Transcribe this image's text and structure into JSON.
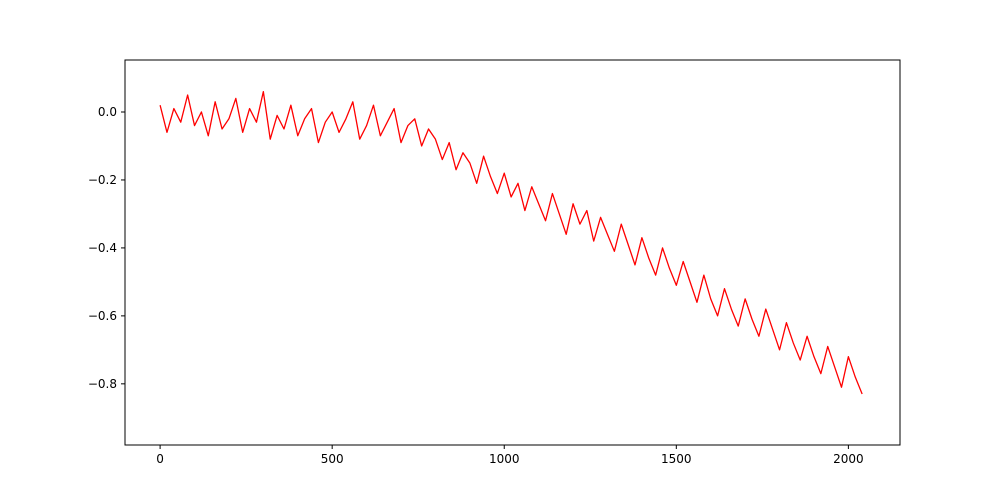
{
  "chart_data": {
    "type": "line",
    "title": "",
    "xlabel": "",
    "ylabel": "",
    "xlim": [
      -102,
      2150
    ],
    "ylim": [
      -0.98,
      0.153
    ],
    "xticks": [
      0,
      500,
      1000,
      1500,
      2000
    ],
    "xtick_labels": [
      "0",
      "500",
      "1000",
      "1500",
      "2000"
    ],
    "yticks": [
      0.0,
      -0.2,
      -0.4,
      -0.6,
      -0.8
    ],
    "ytick_labels": [
      "0.0",
      "−0.2",
      "−0.4",
      "−0.6",
      "−0.8"
    ],
    "grid": false,
    "legend": "none",
    "series": [
      {
        "color": "#ff0000",
        "x": [
          0,
          20,
          40,
          60,
          80,
          100,
          120,
          140,
          160,
          180,
          200,
          220,
          240,
          260,
          280,
          300,
          320,
          340,
          360,
          380,
          400,
          420,
          440,
          460,
          480,
          500,
          520,
          540,
          560,
          580,
          600,
          620,
          640,
          660,
          680,
          700,
          720,
          740,
          760,
          780,
          800,
          820,
          840,
          860,
          880,
          900,
          920,
          940,
          960,
          980,
          1000,
          1020,
          1040,
          1060,
          1080,
          1100,
          1120,
          1140,
          1160,
          1180,
          1200,
          1220,
          1240,
          1260,
          1280,
          1300,
          1320,
          1340,
          1360,
          1380,
          1400,
          1420,
          1440,
          1460,
          1480,
          1500,
          1520,
          1540,
          1560,
          1580,
          1600,
          1620,
          1640,
          1660,
          1680,
          1700,
          1720,
          1740,
          1760,
          1780,
          1800,
          1820,
          1840,
          1860,
          1880,
          1900,
          1920,
          1940,
          1960,
          1980,
          2000,
          2020,
          2040
        ],
        "y": [
          0.02,
          -0.06,
          0.01,
          -0.03,
          0.05,
          -0.04,
          0.0,
          -0.07,
          0.03,
          -0.05,
          -0.02,
          0.04,
          -0.06,
          0.01,
          -0.03,
          0.06,
          -0.08,
          -0.01,
          -0.05,
          0.02,
          -0.07,
          -0.02,
          0.01,
          -0.09,
          -0.03,
          0.0,
          -0.06,
          -0.02,
          0.03,
          -0.08,
          -0.04,
          0.02,
          -0.07,
          -0.03,
          0.01,
          -0.09,
          -0.04,
          -0.02,
          -0.1,
          -0.05,
          -0.08,
          -0.14,
          -0.09,
          -0.17,
          -0.12,
          -0.15,
          -0.21,
          -0.13,
          -0.19,
          -0.24,
          -0.18,
          -0.25,
          -0.21,
          -0.29,
          -0.22,
          -0.27,
          -0.32,
          -0.24,
          -0.3,
          -0.36,
          -0.27,
          -0.33,
          -0.29,
          -0.38,
          -0.31,
          -0.36,
          -0.41,
          -0.33,
          -0.39,
          -0.45,
          -0.37,
          -0.43,
          -0.48,
          -0.4,
          -0.46,
          -0.51,
          -0.44,
          -0.5,
          -0.56,
          -0.48,
          -0.55,
          -0.6,
          -0.52,
          -0.58,
          -0.63,
          -0.55,
          -0.61,
          -0.66,
          -0.58,
          -0.64,
          -0.7,
          -0.62,
          -0.68,
          -0.73,
          -0.66,
          -0.72,
          -0.77,
          -0.69,
          -0.75,
          -0.81,
          -0.72,
          -0.78,
          -0.83
        ]
      }
    ]
  }
}
